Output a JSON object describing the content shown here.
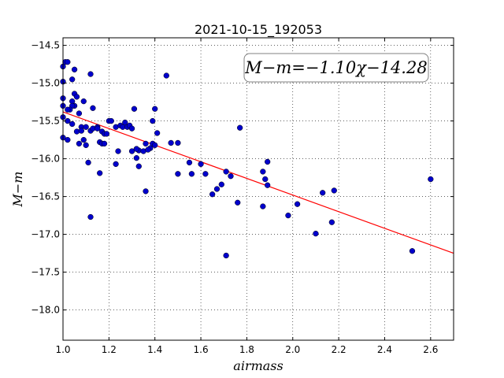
{
  "chart_data": {
    "type": "scatter",
    "title": "2021-10-15_192053",
    "xlabel": "airmass",
    "ylabel": "M−m",
    "xlim": [
      1.0,
      2.7
    ],
    "ylim": [
      -18.4,
      -14.4
    ],
    "y_inverted": true,
    "grid": true,
    "grid_style": "dotted",
    "xticks": [
      1.0,
      1.2,
      1.4,
      1.6,
      1.8,
      2.0,
      2.2,
      2.4,
      2.6
    ],
    "xtick_labels": [
      "1.0",
      "1.2",
      "1.4",
      "1.6",
      "1.8",
      "2.0",
      "2.2",
      "2.4",
      "2.6"
    ],
    "yticks": [
      -14.5,
      -15.0,
      -15.5,
      -16.0,
      -16.5,
      -17.0,
      -17.5,
      -18.0
    ],
    "ytick_labels": [
      "−14.5",
      "−15.0",
      "−15.5",
      "−16.0",
      "−16.5",
      "−17.0",
      "−17.5",
      "−18.0"
    ],
    "annotation": "M−m=−1.10χ−14.28",
    "marker_color": "#0000cc",
    "fit_color": "#ff0000",
    "fit": {
      "slope": -1.1,
      "intercept": -14.28,
      "x": [
        1.0,
        2.7
      ]
    },
    "points": {
      "x": [
        1.0,
        1.01,
        1.02,
        1.0,
        1.05,
        1.04,
        1.0,
        1.0,
        1.05,
        1.06,
        1.04,
        1.07,
        1.05,
        1.04,
        1.09,
        1.03,
        1.02,
        1.0,
        1.02,
        1.08,
        1.13,
        1.15,
        1.12,
        1.04,
        1.06,
        1.1,
        1.08,
        1.13,
        1.15,
        1.17,
        1.18,
        1.19,
        1.2,
        1.21,
        1.23,
        1.25,
        1.26,
        1.27,
        1.28,
        1.29,
        1.3,
        1.31,
        1.32,
        1.33,
        1.36,
        1.38,
        1.39,
        1.41,
        1.4,
        1.39,
        1.45,
        1.47,
        1.5,
        1.32,
        1.3,
        1.1,
        1.09,
        1.07,
        1.0,
        1.02,
        1.11,
        1.16,
        1.17,
        1.18,
        1.23,
        1.24,
        1.32,
        1.33,
        1.35,
        1.37,
        1.4,
        1.5,
        1.55,
        1.56,
        1.6,
        1.62,
        1.65,
        1.67,
        1.69,
        1.71,
        1.73,
        1.76,
        1.77,
        1.87,
        1.88,
        1.89,
        1.89,
        1.87,
        1.98,
        2.02,
        2.1,
        2.13,
        2.17,
        2.18,
        2.52,
        2.6,
        1.12,
        1.71,
        1.36,
        1.12,
        1.16
      ],
      "y": [
        -14.78,
        -14.72,
        -14.72,
        -14.98,
        -14.82,
        -14.95,
        -15.2,
        -15.3,
        -15.14,
        -15.18,
        -15.24,
        -15.4,
        -15.3,
        -15.3,
        -15.24,
        -15.35,
        -15.35,
        -15.45,
        -15.5,
        -15.58,
        -15.33,
        -15.58,
        -15.63,
        -15.54,
        -15.64,
        -15.58,
        -15.63,
        -15.6,
        -15.6,
        -15.64,
        -15.67,
        -15.67,
        -15.5,
        -15.5,
        -15.58,
        -15.56,
        -15.58,
        -15.52,
        -15.58,
        -15.56,
        -15.6,
        -15.34,
        -15.87,
        -15.89,
        -15.8,
        -15.86,
        -15.5,
        -15.66,
        -15.34,
        -15.8,
        -14.9,
        -15.79,
        -15.79,
        -15.99,
        -15.9,
        -15.82,
        -15.75,
        -15.8,
        -15.72,
        -15.75,
        -16.05,
        -15.78,
        -15.8,
        -15.8,
        -16.07,
        -15.9,
        -15.87,
        -16.1,
        -15.9,
        -15.88,
        -15.82,
        -16.2,
        -16.05,
        -16.2,
        -16.07,
        -16.2,
        -16.47,
        -16.4,
        -16.34,
        -16.17,
        -16.23,
        -16.58,
        -15.59,
        -16.17,
        -16.27,
        -16.35,
        -16.04,
        -16.63,
        -16.75,
        -16.6,
        -16.99,
        -16.45,
        -16.84,
        -16.42,
        -17.22,
        -16.27,
        -16.77,
        -17.28,
        -16.43,
        -14.88,
        -16.19
      ]
    }
  }
}
